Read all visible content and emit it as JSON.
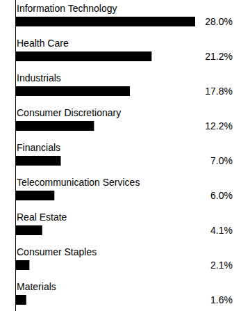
{
  "chart_data": {
    "type": "bar",
    "orientation": "horizontal",
    "categories": [
      "Information Technology",
      "Health Care",
      "Industrials",
      "Consumer Discretionary",
      "Financials",
      "Telecommunication Services",
      "Real Estate",
      "Consumer Staples",
      "Materials"
    ],
    "values": [
      28.0,
      21.2,
      17.8,
      12.2,
      7.0,
      6.0,
      4.1,
      2.1,
      1.6
    ],
    "value_labels": [
      "28.0%",
      "21.2%",
      "17.8%",
      "12.2%",
      "7.0%",
      "6.0%",
      "4.1%",
      "2.1%",
      "1.6%"
    ],
    "color": "#000000",
    "xlim": [
      0,
      28
    ],
    "data_labels": true,
    "tick_labels": "y",
    "grid": false
  }
}
